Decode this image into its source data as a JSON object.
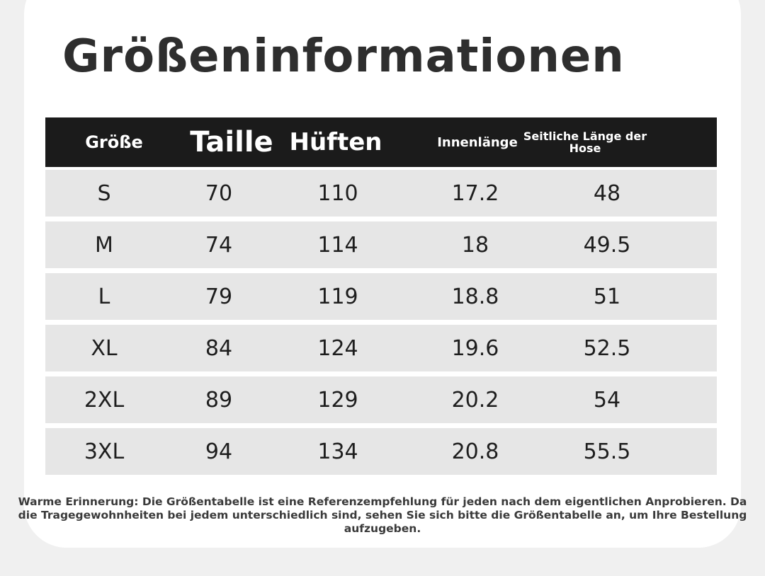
{
  "title": "Größeninformationen",
  "table": {
    "headers": {
      "size": "Größe",
      "waist": "Taille",
      "hips": "Hüften",
      "inseam": "Innenlänge",
      "side_length": "Seitliche Länge der Hose"
    },
    "rows": [
      {
        "size": "S",
        "waist": "70",
        "hips": "110",
        "inseam": "17.2",
        "side_length": "48"
      },
      {
        "size": "M",
        "waist": "74",
        "hips": "114",
        "inseam": "18",
        "side_length": "49.5"
      },
      {
        "size": "L",
        "waist": "79",
        "hips": "119",
        "inseam": "18.8",
        "side_length": "51"
      },
      {
        "size": "XL",
        "waist": "84",
        "hips": "124",
        "inseam": "19.6",
        "side_length": "52.5"
      },
      {
        "size": "2XL",
        "waist": "89",
        "hips": "129",
        "inseam": "20.2",
        "side_length": "54"
      },
      {
        "size": "3XL",
        "waist": "94",
        "hips": "134",
        "inseam": "20.8",
        "side_length": "55.5"
      }
    ]
  },
  "footer_note": "Warme Erinnerung: Die Größentabelle ist eine Referenzempfehlung für jeden nach dem eigentlichen Anprobieren. Da die Tragegewohnheiten bei jedem unterschiedlich sind, sehen Sie sich bitte die Größentabelle an, um Ihre Bestellung aufzugeben.",
  "colors": {
    "header_bg": "#1b1b1b",
    "row_bg": "#e6e6e6",
    "title_text": "#2e2e2e"
  }
}
